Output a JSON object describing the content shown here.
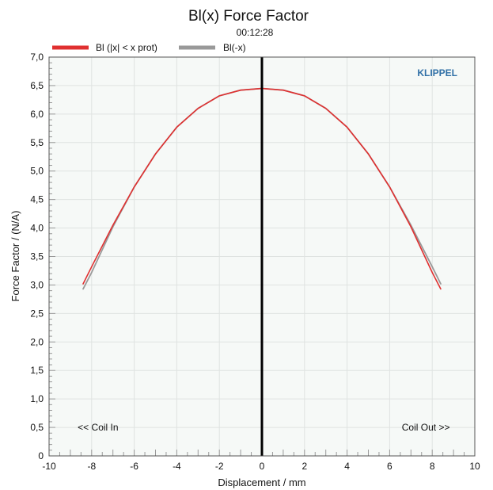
{
  "chart_data": {
    "type": "line",
    "title": "Bl(x) Force Factor",
    "subtitle": "00:12:28",
    "brand": "KLIPPEL",
    "xlabel": "Displacement / mm",
    "ylabel": "Force Factor / (N/A)",
    "xlim": [
      -10,
      10
    ],
    "ylim": [
      0,
      7
    ],
    "x_ticks": [
      -10,
      -8,
      -6,
      -4,
      -2,
      0,
      2,
      4,
      6,
      8,
      10
    ],
    "x_tick_labels": [
      "-10",
      "-8",
      "-6",
      "-4",
      "-2",
      "0",
      "2",
      "4",
      "6",
      "8",
      "10"
    ],
    "y_ticks": [
      0,
      0.5,
      1,
      1.5,
      2,
      2.5,
      3,
      3.5,
      4,
      4.5,
      5,
      5.5,
      6,
      6.5,
      7
    ],
    "y_tick_labels": [
      "0",
      "0,5",
      "1,0",
      "1,5",
      "2,0",
      "2,5",
      "3,0",
      "3,5",
      "4,0",
      "4,5",
      "5,0",
      "5,5",
      "6,0",
      "6,5",
      "7,0"
    ],
    "grid": true,
    "legend_position": "top-left",
    "annotations": [
      {
        "text": "<< Coil In",
        "x": -7.7,
        "y": 0.5
      },
      {
        "text": "Coil Out >>",
        "x": 7.7,
        "y": 0.5
      }
    ],
    "vertical_marker_x": 0,
    "series": [
      {
        "name": "Bl (|x| < x prot)",
        "color": "#e03030",
        "x": [
          -8.4,
          -8,
          -7,
          -6,
          -5,
          -4,
          -3,
          -2,
          -1,
          0,
          1,
          2,
          3,
          4,
          5,
          6,
          7,
          8,
          8.4
        ],
        "y": [
          3.02,
          3.32,
          4.05,
          4.72,
          5.3,
          5.77,
          6.1,
          6.32,
          6.42,
          6.45,
          6.42,
          6.32,
          6.1,
          5.77,
          5.3,
          4.72,
          4.02,
          3.22,
          2.93
        ]
      },
      {
        "name": "Bl(-x)",
        "color": "#999999",
        "x": [
          -8.4,
          -8,
          -7,
          -6,
          -5,
          -4,
          -3,
          -2,
          -1,
          0,
          1,
          2,
          3,
          4,
          5,
          6,
          7,
          8,
          8.4
        ],
        "y": [
          2.93,
          3.22,
          4.02,
          4.72,
          5.3,
          5.77,
          6.1,
          6.32,
          6.42,
          6.45,
          6.42,
          6.32,
          6.1,
          5.77,
          5.3,
          4.72,
          4.05,
          3.32,
          3.02
        ]
      }
    ]
  }
}
